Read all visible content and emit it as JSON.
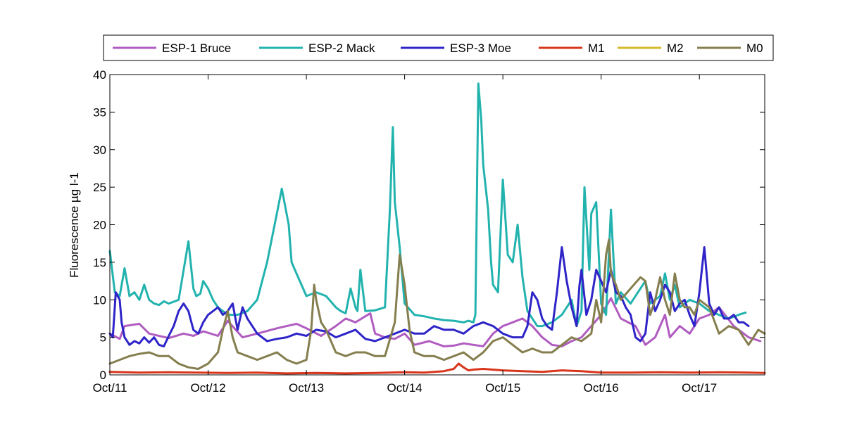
{
  "chart_data": {
    "type": "line",
    "title": "",
    "xlabel": "",
    "ylabel": "Fluorescence µg l-1",
    "x_unit": "days",
    "xlim": [
      11.0,
      17.665
    ],
    "ylim": [
      0,
      40
    ],
    "x_tick_values": [
      11,
      12,
      13,
      14,
      15,
      16,
      17
    ],
    "x_tick_labels": [
      "Oct/11",
      "Oct/12",
      "Oct/13",
      "Oct/14",
      "Oct/15",
      "Oct/16",
      "Oct/17"
    ],
    "y_ticks": [
      0,
      5,
      10,
      15,
      20,
      25,
      30,
      35,
      40
    ],
    "grid": false,
    "legend_position": "top",
    "series": [
      {
        "name": "ESP-1 Bruce",
        "color": "#B05CC0",
        "x": [
          11.0,
          11.1,
          11.15,
          11.3,
          11.4,
          11.6,
          11.75,
          11.85,
          11.95,
          12.1,
          12.2,
          12.35,
          12.5,
          12.7,
          12.8,
          12.9,
          13.0,
          13.15,
          13.3,
          13.4,
          13.5,
          13.6,
          13.65,
          13.7,
          13.8,
          13.9,
          14.0,
          14.1,
          14.25,
          14.4,
          14.5,
          14.6,
          14.7,
          14.8,
          14.9,
          15.0,
          15.1,
          15.2,
          15.3,
          15.4,
          15.5,
          15.6,
          15.7,
          15.8,
          15.9,
          16.0,
          16.1,
          16.2,
          16.35,
          16.45,
          16.55,
          16.65,
          16.7,
          16.8,
          16.9,
          17.0,
          17.1,
          17.2,
          17.35,
          17.5,
          17.62
        ],
        "y": [
          5.5,
          4.8,
          6.5,
          6.8,
          5.5,
          4.9,
          5.5,
          5.2,
          5.8,
          5.2,
          7.2,
          5.0,
          5.5,
          6.2,
          6.5,
          6.8,
          6.2,
          5.2,
          6.5,
          7.5,
          7.0,
          7.8,
          8.2,
          5.5,
          5.0,
          4.8,
          5.5,
          4.0,
          4.5,
          3.8,
          3.9,
          4.2,
          4.0,
          3.8,
          5.5,
          6.5,
          7.0,
          7.5,
          6.5,
          5.0,
          4.0,
          3.8,
          4.5,
          5.0,
          6.5,
          8.0,
          10.2,
          7.5,
          6.5,
          4.0,
          5.0,
          8.0,
          5.0,
          6.5,
          5.5,
          7.5,
          8.0,
          9.0,
          6.5,
          5.0,
          4.5
        ]
      },
      {
        "name": "ESP-2 Mack",
        "color": "#22B3AE",
        "x": [
          11.0,
          11.05,
          11.1,
          11.15,
          11.2,
          11.25,
          11.3,
          11.35,
          11.4,
          11.45,
          11.5,
          11.55,
          11.6,
          11.7,
          11.8,
          11.85,
          11.88,
          11.92,
          11.95,
          12.0,
          12.05,
          12.1,
          12.15,
          12.2,
          12.3,
          12.4,
          12.5,
          12.6,
          12.7,
          12.75,
          12.82,
          12.85,
          12.9,
          12.95,
          13.0,
          13.1,
          13.2,
          13.3,
          13.35,
          13.4,
          13.45,
          13.5,
          13.52,
          13.55,
          13.6,
          13.7,
          13.8,
          13.85,
          13.88,
          13.9,
          13.95,
          14.0,
          14.1,
          14.2,
          14.3,
          14.4,
          14.5,
          14.6,
          14.65,
          14.7,
          14.72,
          14.75,
          14.78,
          14.8,
          14.85,
          14.88,
          14.9,
          14.95,
          15.0,
          15.05,
          15.1,
          15.15,
          15.2,
          15.25,
          15.3,
          15.35,
          15.4,
          15.5,
          15.6,
          15.7,
          15.75,
          15.8,
          15.83,
          15.88,
          15.9,
          15.95,
          16.0,
          16.05,
          16.1,
          16.15,
          16.2,
          16.3,
          16.4,
          16.45,
          16.5,
          16.55,
          16.6,
          16.65,
          16.7,
          16.75,
          16.8,
          16.9,
          17.0,
          17.1,
          17.2,
          17.3,
          17.4,
          17.47
        ],
        "y": [
          16.5,
          11.0,
          10.5,
          14.2,
          10.5,
          11.0,
          10.0,
          12.0,
          10.0,
          9.5,
          9.3,
          9.8,
          9.5,
          10.0,
          17.8,
          11.5,
          10.5,
          10.8,
          12.5,
          11.5,
          10.0,
          9.0,
          8.5,
          8.0,
          8.0,
          8.5,
          10.0,
          15.0,
          21.5,
          24.8,
          20.0,
          15.0,
          13.5,
          12.0,
          10.5,
          11.0,
          10.5,
          9.0,
          8.5,
          8.2,
          11.5,
          9.0,
          8.5,
          14.0,
          8.5,
          8.6,
          9.0,
          22.0,
          33.0,
          23.0,
          17.0,
          9.5,
          8.0,
          7.8,
          7.5,
          7.3,
          7.2,
          7.0,
          7.2,
          7.0,
          8.0,
          38.8,
          34.0,
          28.0,
          22.0,
          15.0,
          12.0,
          11.0,
          26.0,
          16.0,
          15.0,
          20.0,
          13.0,
          8.5,
          7.5,
          6.5,
          6.5,
          7.0,
          8.0,
          10.0,
          6.5,
          8.5,
          25.0,
          14.0,
          21.5,
          23.0,
          9.5,
          8.0,
          22.0,
          9.5,
          11.0,
          9.5,
          11.5,
          12.5,
          9.5,
          10.0,
          10.5,
          13.5,
          10.0,
          12.0,
          9.0,
          10.0,
          9.5,
          8.5,
          8.0,
          7.5,
          8.0,
          8.3
        ]
      },
      {
        "name": "ESP-3 Moe",
        "color": "#2E24C8",
        "x": [
          11.0,
          11.03,
          11.06,
          11.1,
          11.12,
          11.15,
          11.2,
          11.25,
          11.3,
          11.35,
          11.4,
          11.45,
          11.5,
          11.55,
          11.6,
          11.65,
          11.7,
          11.75,
          11.8,
          11.85,
          11.9,
          11.95,
          12.0,
          12.05,
          12.1,
          12.15,
          12.2,
          12.25,
          12.3,
          12.35,
          12.4,
          12.5,
          12.6,
          12.7,
          12.8,
          12.9,
          13.0,
          13.1,
          13.2,
          13.3,
          13.4,
          13.5,
          13.6,
          13.7,
          13.8,
          13.9,
          14.0,
          14.1,
          14.2,
          14.3,
          14.4,
          14.5,
          14.6,
          14.7,
          14.8,
          14.9,
          15.0,
          15.1,
          15.2,
          15.25,
          15.3,
          15.35,
          15.4,
          15.45,
          15.5,
          15.55,
          15.6,
          15.65,
          15.7,
          15.75,
          15.78,
          15.8,
          15.85,
          15.9,
          15.95,
          16.0,
          16.05,
          16.1,
          16.15,
          16.2,
          16.25,
          16.3,
          16.35,
          16.4,
          16.45,
          16.5,
          16.55,
          16.6,
          16.65,
          16.7,
          16.75,
          16.8,
          16.85,
          16.9,
          16.95,
          17.0,
          17.05,
          17.1,
          17.15,
          17.2,
          17.25,
          17.3,
          17.35,
          17.4,
          17.45,
          17.5
        ],
        "y": [
          5.5,
          5.0,
          11.0,
          10.0,
          7.0,
          5.0,
          4.0,
          4.5,
          4.2,
          5.0,
          4.3,
          5.0,
          4.0,
          3.8,
          5.2,
          6.5,
          8.5,
          9.5,
          8.5,
          6.0,
          5.5,
          7.0,
          8.0,
          8.5,
          9.0,
          8.0,
          8.5,
          9.5,
          6.0,
          9.0,
          7.5,
          5.5,
          4.5,
          4.8,
          5.0,
          5.5,
          5.2,
          6.0,
          5.8,
          5.0,
          5.5,
          6.0,
          4.8,
          4.5,
          5.0,
          5.5,
          6.0,
          5.5,
          5.5,
          6.5,
          6.0,
          6.0,
          5.5,
          6.5,
          7.0,
          6.5,
          5.5,
          5.0,
          5.0,
          6.5,
          11.0,
          10.0,
          7.5,
          6.5,
          6.0,
          11.0,
          17.0,
          12.5,
          9.0,
          6.5,
          12.0,
          14.0,
          8.0,
          10.0,
          14.0,
          12.5,
          11.0,
          14.0,
          11.0,
          10.5,
          9.0,
          8.0,
          5.0,
          4.5,
          5.5,
          11.0,
          8.5,
          10.0,
          12.0,
          11.0,
          8.5,
          9.5,
          10.0,
          8.0,
          6.5,
          11.0,
          17.0,
          9.5,
          8.0,
          9.0,
          7.5,
          7.5,
          8.0,
          7.0,
          7.0,
          6.5
        ]
      },
      {
        "name": "M1",
        "color": "#D8351B",
        "x": [
          11.0,
          11.3,
          11.6,
          11.9,
          12.2,
          12.5,
          12.8,
          13.1,
          13.4,
          13.7,
          14.0,
          14.2,
          14.4,
          14.5,
          14.55,
          14.6,
          14.65,
          14.7,
          14.8,
          15.0,
          15.2,
          15.4,
          15.6,
          15.8,
          16.0,
          16.3,
          16.6,
          16.9,
          17.2,
          17.5,
          17.665
        ],
        "y": [
          0.4,
          0.3,
          0.35,
          0.3,
          0.25,
          0.3,
          0.2,
          0.25,
          0.2,
          0.25,
          0.35,
          0.3,
          0.5,
          0.8,
          1.5,
          1.0,
          0.6,
          0.7,
          0.8,
          0.6,
          0.5,
          0.4,
          0.6,
          0.5,
          0.3,
          0.3,
          0.35,
          0.3,
          0.35,
          0.3,
          0.25
        ]
      },
      {
        "name": "M2",
        "color": "#D4B92B",
        "x": [],
        "y": []
      },
      {
        "name": "M0",
        "color": "#857E4E",
        "x": [
          11.0,
          11.1,
          11.2,
          11.3,
          11.4,
          11.5,
          11.6,
          11.7,
          11.8,
          11.9,
          12.0,
          12.1,
          12.15,
          12.2,
          12.25,
          12.3,
          12.4,
          12.5,
          12.6,
          12.7,
          12.8,
          12.9,
          13.0,
          13.05,
          13.08,
          13.1,
          13.15,
          13.2,
          13.3,
          13.4,
          13.5,
          13.6,
          13.7,
          13.8,
          13.9,
          13.95,
          14.0,
          14.05,
          14.1,
          14.2,
          14.3,
          14.4,
          14.5,
          14.6,
          14.7,
          14.8,
          14.9,
          15.0,
          15.1,
          15.2,
          15.3,
          15.4,
          15.5,
          15.6,
          15.7,
          15.8,
          15.9,
          15.95,
          16.0,
          16.05,
          16.08,
          16.1,
          16.15,
          16.2,
          16.3,
          16.4,
          16.45,
          16.5,
          16.55,
          16.6,
          16.65,
          16.7,
          16.75,
          16.8,
          16.85,
          16.9,
          16.95,
          17.0,
          17.1,
          17.2,
          17.3,
          17.4,
          17.5,
          17.55,
          17.6,
          17.665
        ],
        "y": [
          1.5,
          2.0,
          2.5,
          2.8,
          3.0,
          2.5,
          2.5,
          1.5,
          1.0,
          0.8,
          1.5,
          3.0,
          6.0,
          8.5,
          5.0,
          3.0,
          2.5,
          2.0,
          2.5,
          3.0,
          2.0,
          1.5,
          2.0,
          6.0,
          12.0,
          10.0,
          7.0,
          6.0,
          3.0,
          2.5,
          3.0,
          3.0,
          2.5,
          2.5,
          7.0,
          16.0,
          12.0,
          6.0,
          3.0,
          2.5,
          2.5,
          2.0,
          2.5,
          3.0,
          2.0,
          3.0,
          4.5,
          5.0,
          4.0,
          3.0,
          3.5,
          3.0,
          3.0,
          4.0,
          5.0,
          4.5,
          5.5,
          10.0,
          7.0,
          16.0,
          18.0,
          13.5,
          12.0,
          10.0,
          11.5,
          13.0,
          12.5,
          8.0,
          10.0,
          13.0,
          10.0,
          8.0,
          13.5,
          10.0,
          9.0,
          9.0,
          8.0,
          10.0,
          9.0,
          5.5,
          6.5,
          6.0,
          4.0,
          5.0,
          6.0,
          5.5
        ]
      }
    ]
  }
}
